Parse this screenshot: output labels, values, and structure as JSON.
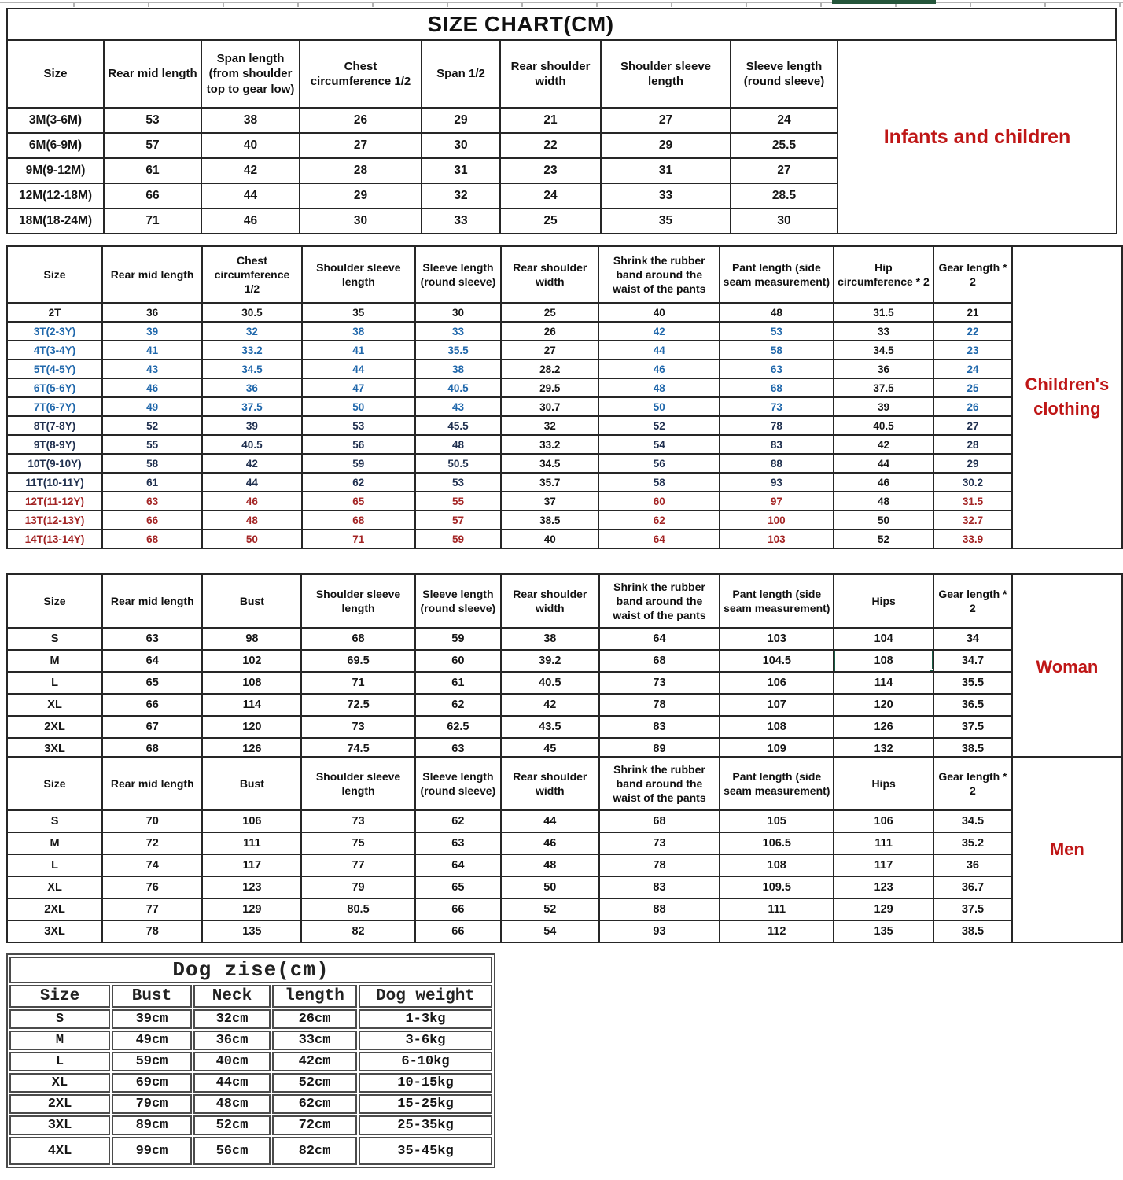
{
  "page": {
    "title": "SIZE CHART(CM)"
  },
  "colors": {
    "section_label_red": "#bf1616",
    "row_blue": "#1f67ab",
    "row_navy": "#20304f",
    "row_red": "#a32424",
    "text_black": "#161616",
    "selection_green": "#1a5c44",
    "top_marker_green": "#25563b",
    "grid_border": "#262626"
  },
  "tables": {
    "infants": {
      "label": "Infants and children",
      "headers": [
        "Size",
        "Rear mid length",
        "Span length (from shoulder top to gear low)",
        "Chest circumference 1/2",
        "Span 1/2",
        "Rear shoulder width",
        "Shoulder sleeve length",
        "Sleeve length (round sleeve)"
      ],
      "rows": [
        {
          "color": "black",
          "cells": [
            "3M(3-6M)",
            "53",
            "38",
            "26",
            "29",
            "21",
            "27",
            "24"
          ]
        },
        {
          "color": "black",
          "cells": [
            "6M(6-9M)",
            "57",
            "40",
            "27",
            "30",
            "22",
            "29",
            "25.5"
          ]
        },
        {
          "color": "black",
          "cells": [
            "9M(9-12M)",
            "61",
            "42",
            "28",
            "31",
            "23",
            "31",
            "27"
          ]
        },
        {
          "color": "black",
          "cells": [
            "12M(12-18M)",
            "66",
            "44",
            "29",
            "32",
            "24",
            "33",
            "28.5"
          ]
        },
        {
          "color": "black",
          "cells": [
            "18M(18-24M)",
            "71",
            "46",
            "30",
            "33",
            "25",
            "35",
            "30"
          ]
        }
      ]
    },
    "children": {
      "label": "Children's clothing",
      "headers": [
        "Size",
        "Rear mid length",
        "Chest circumference 1/2",
        "Shoulder sleeve length",
        "Sleeve length (round sleeve)",
        "Rear shoulder width",
        "Shrink the rubber band around the waist of the pants",
        "Pant length (side seam measurement)",
        "Hip circumference * 2",
        "Gear length * 2"
      ],
      "black_cols": [
        5,
        8
      ],
      "rows": [
        {
          "color": "black",
          "cells": [
            "2T",
            "36",
            "30.5",
            "35",
            "30",
            "25",
            "40",
            "48",
            "31.5",
            "21"
          ]
        },
        {
          "color": "blue",
          "cells": [
            "3T(2-3Y)",
            "39",
            "32",
            "38",
            "33",
            "26",
            "42",
            "53",
            "33",
            "22"
          ]
        },
        {
          "color": "blue",
          "cells": [
            "4T(3-4Y)",
            "41",
            "33.2",
            "41",
            "35.5",
            "27",
            "44",
            "58",
            "34.5",
            "23"
          ]
        },
        {
          "color": "blue",
          "cells": [
            "5T(4-5Y)",
            "43",
            "34.5",
            "44",
            "38",
            "28.2",
            "46",
            "63",
            "36",
            "24"
          ]
        },
        {
          "color": "blue",
          "cells": [
            "6T(5-6Y)",
            "46",
            "36",
            "47",
            "40.5",
            "29.5",
            "48",
            "68",
            "37.5",
            "25"
          ]
        },
        {
          "color": "blue",
          "cells": [
            "7T(6-7Y)",
            "49",
            "37.5",
            "50",
            "43",
            "30.7",
            "50",
            "73",
            "39",
            "26"
          ]
        },
        {
          "color": "navy",
          "cells": [
            "8T(7-8Y)",
            "52",
            "39",
            "53",
            "45.5",
            "32",
            "52",
            "78",
            "40.5",
            "27"
          ]
        },
        {
          "color": "navy",
          "cells": [
            "9T(8-9Y)",
            "55",
            "40.5",
            "56",
            "48",
            "33.2",
            "54",
            "83",
            "42",
            "28"
          ]
        },
        {
          "color": "navy",
          "cells": [
            "10T(9-10Y)",
            "58",
            "42",
            "59",
            "50.5",
            "34.5",
            "56",
            "88",
            "44",
            "29"
          ]
        },
        {
          "color": "navy",
          "cells": [
            "11T(10-11Y)",
            "61",
            "44",
            "62",
            "53",
            "35.7",
            "58",
            "93",
            "46",
            "30.2"
          ]
        },
        {
          "color": "red",
          "cells": [
            "12T(11-12Y)",
            "63",
            "46",
            "65",
            "55",
            "37",
            "60",
            "97",
            "48",
            "31.5"
          ]
        },
        {
          "color": "red",
          "cells": [
            "13T(12-13Y)",
            "66",
            "48",
            "68",
            "57",
            "38.5",
            "62",
            "100",
            "50",
            "32.7"
          ]
        },
        {
          "color": "red",
          "cells": [
            "14T(13-14Y)",
            "68",
            "50",
            "71",
            "59",
            "40",
            "64",
            "103",
            "52",
            "33.9"
          ]
        }
      ]
    },
    "woman": {
      "label": "Woman",
      "headers": [
        "Size",
        "Rear mid length",
        "Bust",
        "Shoulder sleeve length",
        "Sleeve length (round sleeve)",
        "Rear shoulder width",
        "Shrink the rubber band around the waist of the pants",
        "Pant length (side seam measurement)",
        "Hips",
        "Gear length * 2"
      ],
      "selected_cell": {
        "row_index": 1,
        "cell_index": 8
      },
      "rows": [
        {
          "color": "black",
          "cells": [
            "S",
            "63",
            "98",
            "68",
            "59",
            "38",
            "64",
            "103",
            "104",
            "34"
          ]
        },
        {
          "color": "black",
          "cells": [
            "M",
            "64",
            "102",
            "69.5",
            "60",
            "39.2",
            "68",
            "104.5",
            "108",
            "34.7"
          ]
        },
        {
          "color": "black",
          "cells": [
            "L",
            "65",
            "108",
            "71",
            "61",
            "40.5",
            "73",
            "106",
            "114",
            "35.5"
          ]
        },
        {
          "color": "black",
          "cells": [
            "XL",
            "66",
            "114",
            "72.5",
            "62",
            "42",
            "78",
            "107",
            "120",
            "36.5"
          ]
        },
        {
          "color": "black",
          "cells": [
            "2XL",
            "67",
            "120",
            "73",
            "62.5",
            "43.5",
            "83",
            "108",
            "126",
            "37.5"
          ]
        },
        {
          "color": "black",
          "cells": [
            "3XL",
            "68",
            "126",
            "74.5",
            "63",
            "45",
            "89",
            "109",
            "132",
            "38.5"
          ]
        }
      ]
    },
    "men": {
      "label": "Men",
      "headers": [
        "Size",
        "Rear mid length",
        "Bust",
        "Shoulder sleeve length",
        "Sleeve length (round sleeve)",
        "Rear shoulder width",
        "Shrink the rubber band around the waist of the pants",
        "Pant length (side seam measurement)",
        "Hips",
        "Gear length * 2"
      ],
      "rows": [
        {
          "color": "black",
          "cells": [
            "S",
            "70",
            "106",
            "73",
            "62",
            "44",
            "68",
            "105",
            "106",
            "34.5"
          ]
        },
        {
          "color": "black",
          "cells": [
            "M",
            "72",
            "111",
            "75",
            "63",
            "46",
            "73",
            "106.5",
            "111",
            "35.2"
          ]
        },
        {
          "color": "black",
          "cells": [
            "L",
            "74",
            "117",
            "77",
            "64",
            "48",
            "78",
            "108",
            "117",
            "36"
          ]
        },
        {
          "color": "black",
          "cells": [
            "XL",
            "76",
            "123",
            "79",
            "65",
            "50",
            "83",
            "109.5",
            "123",
            "36.7"
          ]
        },
        {
          "color": "black",
          "cells": [
            "2XL",
            "77",
            "129",
            "80.5",
            "66",
            "52",
            "88",
            "111",
            "129",
            "37.5"
          ]
        },
        {
          "color": "black",
          "cells": [
            "3XL",
            "78",
            "135",
            "82",
            "66",
            "54",
            "93",
            "112",
            "135",
            "38.5"
          ]
        }
      ]
    },
    "dog": {
      "title": "Dog zise(cm)",
      "headers": [
        "Size",
        "Bust",
        "Neck",
        "length",
        "Dog weight"
      ],
      "rows": [
        {
          "color": "black",
          "cells": [
            "S",
            "39cm",
            "32cm",
            "26cm",
            "1-3kg"
          ]
        },
        {
          "color": "black",
          "cells": [
            "M",
            "49cm",
            "36cm",
            "33cm",
            "3-6kg"
          ]
        },
        {
          "color": "black",
          "cells": [
            "L",
            "59cm",
            "40cm",
            "42cm",
            "6-10kg"
          ]
        },
        {
          "color": "black",
          "cells": [
            "XL",
            "69cm",
            "44cm",
            "52cm",
            "10-15kg"
          ]
        },
        {
          "color": "black",
          "cells": [
            "2XL",
            "79cm",
            "48cm",
            "62cm",
            "15-25kg"
          ]
        },
        {
          "color": "black",
          "cells": [
            "3XL",
            "89cm",
            "52cm",
            "72cm",
            "25-35kg"
          ]
        },
        {
          "color": "black",
          "cells": [
            "4XL",
            "99cm",
            "56cm",
            "82cm",
            "35-45kg"
          ]
        }
      ]
    }
  }
}
